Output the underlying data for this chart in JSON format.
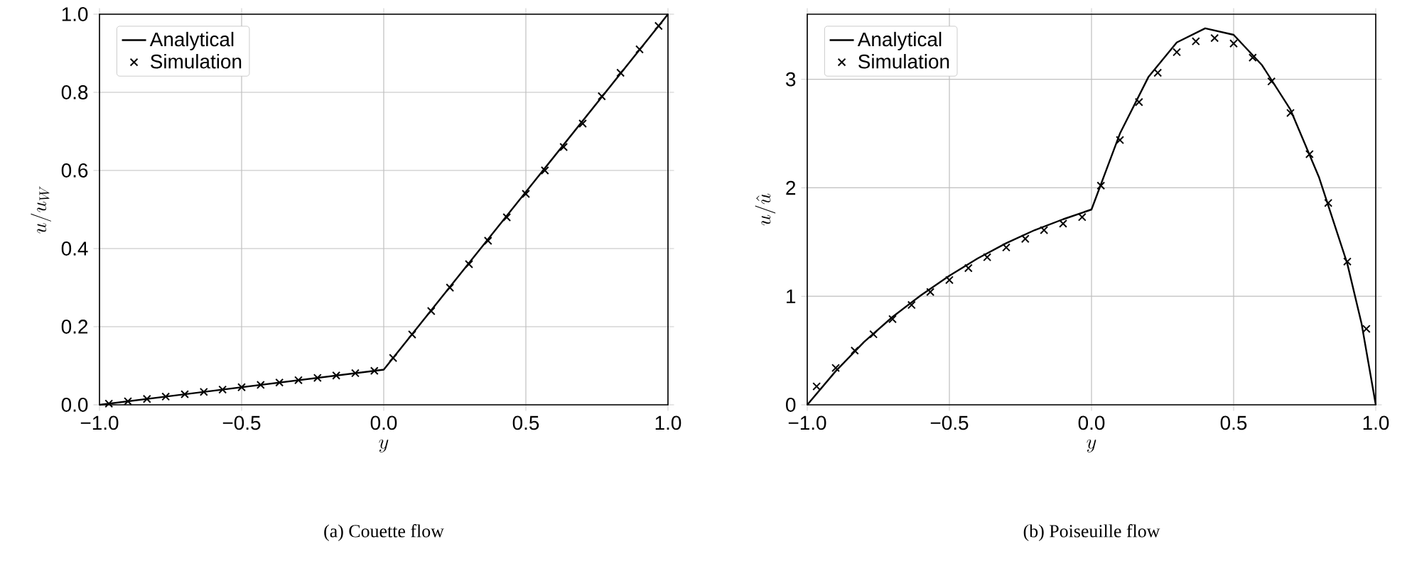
{
  "chart_data": [
    {
      "type": "line",
      "xlabel": "y",
      "ylabel": "u/u_W",
      "xlim": [
        -1,
        1
      ],
      "ylim": [
        0,
        1
      ],
      "xticks": [
        {
          "value": -1,
          "label": "−1.0"
        },
        {
          "value": -0.5,
          "label": "−0.5"
        },
        {
          "value": 0,
          "label": "0.0"
        },
        {
          "value": 0.5,
          "label": "0.5"
        },
        {
          "value": 1,
          "label": "1.0"
        }
      ],
      "yticks": [
        {
          "value": 0,
          "label": "0.0"
        },
        {
          "value": 0.2,
          "label": "0.2"
        },
        {
          "value": 0.4,
          "label": "0.4"
        },
        {
          "value": 0.6,
          "label": "0.6"
        },
        {
          "value": 0.8,
          "label": "0.8"
        },
        {
          "value": 1,
          "label": "1.0"
        }
      ],
      "grid": true,
      "legend": "top left",
      "annotations": [
        "(a) Couette flow"
      ],
      "series": [
        {
          "name": "Analytical",
          "color": "#000000",
          "x": [
            -1,
            0,
            1
          ],
          "values": [
            0,
            0.09,
            1
          ]
        },
        {
          "name": "Simulation",
          "type": "scatter",
          "marker": "cross",
          "color": "#000000",
          "x": [
            -0.967,
            -0.9,
            -0.833,
            -0.767,
            -0.7,
            -0.633,
            -0.567,
            -0.5,
            -0.433,
            -0.367,
            -0.3,
            -0.233,
            -0.167,
            -0.1,
            -0.033,
            0.033,
            0.1,
            0.167,
            0.233,
            0.3,
            0.367,
            0.433,
            0.5,
            0.567,
            0.633,
            0.7,
            0.767,
            0.833,
            0.9,
            0.967
          ],
          "values": [
            0.003,
            0.009,
            0.015,
            0.021,
            0.027,
            0.033,
            0.039,
            0.045,
            0.051,
            0.057,
            0.063,
            0.069,
            0.075,
            0.081,
            0.087,
            0.12,
            0.18,
            0.24,
            0.3,
            0.36,
            0.42,
            0.48,
            0.54,
            0.6,
            0.66,
            0.72,
            0.79,
            0.85,
            0.91,
            0.97
          ]
        }
      ]
    },
    {
      "type": "line",
      "xlabel": "y",
      "ylabel": "u/\\hat{u}",
      "xlim": [
        -1,
        1
      ],
      "ylim": [
        0,
        3.6
      ],
      "xticks": [
        {
          "value": -1,
          "label": "−1.0"
        },
        {
          "value": -0.5,
          "label": "−0.5"
        },
        {
          "value": 0,
          "label": "0.0"
        },
        {
          "value": 0.5,
          "label": "0.5"
        },
        {
          "value": 1,
          "label": "1.0"
        }
      ],
      "yticks": [
        0,
        1,
        2,
        3
      ],
      "grid": true,
      "legend": "top left",
      "annotations": [
        "(b) Poiseuille flow"
      ],
      "series": [
        {
          "name": "Analytical",
          "color": "#000000",
          "x": [
            -1,
            -0.9,
            -0.8,
            -0.7,
            -0.6,
            -0.5,
            -0.4,
            -0.3,
            -0.2,
            -0.1,
            0,
            0.1,
            0.2,
            0.3,
            0.4,
            0.5,
            0.6,
            0.7,
            0.8,
            0.9,
            0.95,
            1
          ],
          "values": [
            0,
            0.31,
            0.58,
            0.81,
            1.01,
            1.19,
            1.35,
            1.49,
            1.61,
            1.71,
            1.8,
            2.5,
            3.02,
            3.34,
            3.47,
            3.41,
            3.13,
            2.72,
            2.1,
            1.3,
            0.75,
            0
          ]
        },
        {
          "name": "Simulation",
          "type": "scatter",
          "marker": "cross",
          "color": "#000000",
          "x": [
            -0.967,
            -0.9,
            -0.833,
            -0.767,
            -0.7,
            -0.633,
            -0.567,
            -0.5,
            -0.433,
            -0.367,
            -0.3,
            -0.233,
            -0.167,
            -0.1,
            -0.033,
            0.033,
            0.1,
            0.167,
            0.233,
            0.3,
            0.367,
            0.433,
            0.5,
            0.567,
            0.633,
            0.7,
            0.767,
            0.833,
            0.9,
            0.967
          ],
          "values": [
            0.17,
            0.34,
            0.5,
            0.65,
            0.79,
            0.92,
            1.04,
            1.15,
            1.26,
            1.36,
            1.45,
            1.53,
            1.61,
            1.67,
            1.73,
            2.02,
            2.44,
            2.79,
            3.06,
            3.25,
            3.35,
            3.38,
            3.33,
            3.2,
            2.98,
            2.69,
            2.31,
            1.86,
            1.32,
            0.7
          ]
        }
      ]
    }
  ]
}
